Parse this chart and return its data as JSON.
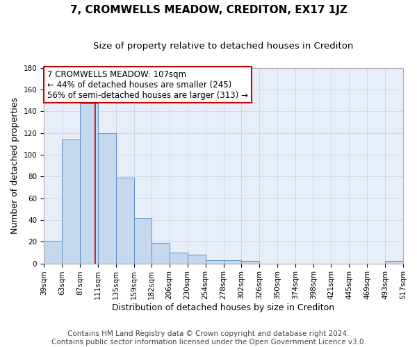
{
  "title": "7, CROMWELLS MEADOW, CREDITON, EX17 1JZ",
  "subtitle": "Size of property relative to detached houses in Crediton",
  "xlabel": "Distribution of detached houses by size in Crediton",
  "ylabel": "Number of detached properties",
  "footer_line1": "Contains HM Land Registry data © Crown copyright and database right 2024.",
  "footer_line2": "Contains public sector information licensed under the Open Government Licence v3.0.",
  "annotation_line1": "7 CROMWELLS MEADOW: 107sqm",
  "annotation_line2": "← 44% of detached houses are smaller (245)",
  "annotation_line3": "56% of semi-detached houses are larger (313) →",
  "property_size_sqm": 107,
  "bar_edges": [
    39,
    63,
    87,
    111,
    135,
    159,
    182,
    206,
    230,
    254,
    278,
    302,
    326,
    350,
    374,
    398,
    421,
    445,
    469,
    493,
    517
  ],
  "bar_heights": [
    21,
    114,
    147,
    120,
    79,
    42,
    19,
    10,
    8,
    3,
    3,
    2,
    0,
    0,
    0,
    0,
    0,
    0,
    0,
    2
  ],
  "bar_color": "#c5d8ee",
  "bar_edge_color": "#5b8dc8",
  "vline_color": "#cc0000",
  "vline_x": 107,
  "ylim": [
    0,
    180
  ],
  "yticks": [
    0,
    20,
    40,
    60,
    80,
    100,
    120,
    140,
    160,
    180
  ],
  "ax_facecolor": "#e8eef8",
  "fig_facecolor": "#ffffff",
  "grid_color": "#c8d4e8",
  "annotation_box_color": "#ffffff",
  "annotation_box_edge": "#cc0000",
  "title_fontsize": 11,
  "subtitle_fontsize": 9.5,
  "xlabel_fontsize": 9,
  "ylabel_fontsize": 9,
  "footer_fontsize": 7.5,
  "annotation_fontsize": 8.5,
  "tick_fontsize": 7.5
}
